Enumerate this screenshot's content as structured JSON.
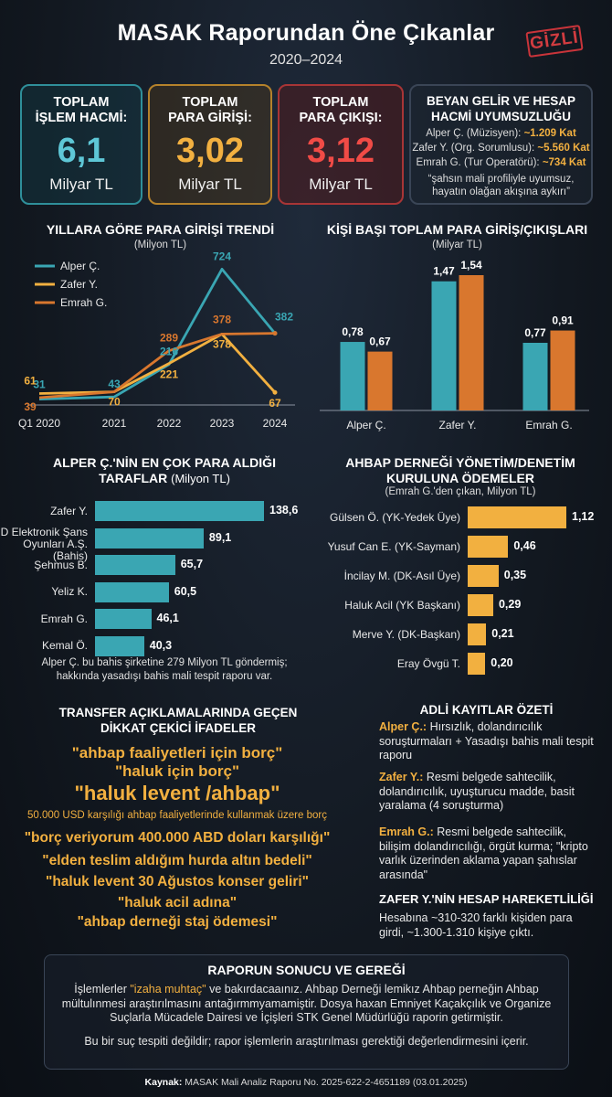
{
  "header": {
    "title": "MASAK Raporundan Öne Çıkanlar",
    "subtitle": "2020–2024",
    "stamp": "GİZLİ"
  },
  "stats": {
    "total_volume": {
      "label_1": "TOPLAM",
      "label_2": "İŞLEM HACMİ:",
      "value": "6,1",
      "unit": "Milyar TL"
    },
    "total_in": {
      "label_1": "TOPLAM",
      "label_2": "PARA GİRİŞİ:",
      "value": "3,02",
      "unit": "Milyar TL"
    },
    "total_out": {
      "label_1": "TOPLAM",
      "label_2": "PARA ÇIKIŞI:",
      "value": "3,12",
      "unit": "Milyar TL"
    },
    "mismatch": {
      "title_1": "BEYAN GELİR VE HESAP",
      "title_2": "HACMİ UYUMSUZLUĞU",
      "rows": [
        {
          "name": "Alper Ç. (Müzisyen):",
          "value": "~1.209 Kat"
        },
        {
          "name": "Zafer Y. (Org. Sorumlusu):",
          "value": "~5.560 Kat"
        },
        {
          "name": "Emrah G. (Tur Operatörü):",
          "value": "~734 Kat"
        }
      ],
      "quote_1": "“şahsın mali profiliyle uyumsuz,",
      "quote_2": "hayatın olağan akışına aykırı”"
    }
  },
  "colors": {
    "teal": "#3aa6b3",
    "gold": "#f2b040",
    "orange": "#d9772e",
    "red": "#f04b46"
  },
  "chart_data": [
    {
      "type": "line",
      "title": "YILLARA GÖRE PARA GİRİŞİ TRENDİ",
      "subtitle": "(Milyon TL)",
      "x": [
        "Q1 2020",
        "2021",
        "2022",
        "2023",
        "2024"
      ],
      "series": [
        {
          "name": "Alper Ç.",
          "values": [
            31,
            43,
            216,
            724,
            382
          ]
        },
        {
          "name": "Zafer Y.",
          "values": [
            61,
            70,
            221,
            378,
            67
          ]
        },
        {
          "name": "Emrah G.",
          "values": [
            39,
            70,
            289,
            378,
            382
          ]
        }
      ],
      "legend": "top-left"
    },
    {
      "type": "bar",
      "title": "KİŞİ BAŞI TOPLAM PARA GİRİŞ/ÇIKIŞLARI",
      "subtitle": "(Milyar TL)",
      "categories": [
        "Alper Ç.",
        "Zafer Y.",
        "Emrah G."
      ],
      "series": [
        {
          "values": [
            0.78,
            1.47,
            0.77
          ],
          "labels": [
            "0,78",
            "1,47",
            "0,77"
          ]
        },
        {
          "values": [
            0.67,
            1.54,
            0.91
          ],
          "labels": [
            "0,67",
            "1,54",
            "0,91"
          ]
        }
      ]
    },
    {
      "type": "bar",
      "orientation": "horizontal",
      "title_1": "ALPER Ç.'NİN EN ÇOK PARA ALDIĞI",
      "title_2": "TARAFLAR",
      "title_unit": "(Milyon TL)",
      "categories": [
        "Zafer Y.",
        "D Elektronik Şans Oyunları A.Ş. (Bahis)",
        "Şehmus B.",
        "Yeliz K.",
        "Emrah G.",
        "Kemal Ö."
      ],
      "category_lines": [
        [
          "Zafer Y."
        ],
        [
          "D Elektronik Şans",
          "Oyunları A.Ş. (Bahis)"
        ],
        [
          "Şehmus B."
        ],
        [
          "Yeliz K."
        ],
        [
          "Emrah G."
        ],
        [
          "Kemal Ö."
        ]
      ],
      "values": [
        138.6,
        89.1,
        65.7,
        60.5,
        46.1,
        40.3
      ],
      "labels": [
        "138,6",
        "89,1",
        "65,7",
        "60,5",
        "46,1",
        "40,3"
      ],
      "note_1": "Alper Ç. bu bahis şirketine 279 Milyon TL göndermiş;",
      "note_2": "hakkında yasadışı bahis mali tespit raporu var."
    },
    {
      "type": "bar",
      "orientation": "horizontal",
      "title_1": "AHBAP DERNEĞİ YÖNETİM/DENETİM",
      "title_2": "KURULUNA ÖDEMELER",
      "subtitle": "(Emrah G.'den çıkan, Milyon TL)",
      "categories": [
        "Gülsen Ö. (YK-Yedek Üye)",
        "Yusuf Can E. (YK-Sayman)",
        "İncilay M. (DK-Asıl Üye)",
        "Haluk Acil (YK Başkanı)",
        "Merve Y. (DK-Başkan)",
        "Eray Övgü T."
      ],
      "values": [
        1.12,
        0.46,
        0.35,
        0.29,
        0.21,
        0.2
      ],
      "labels": [
        "1,12",
        "0,46",
        "0,35",
        "0,29",
        "0,21",
        "0,20"
      ]
    }
  ],
  "transfer": {
    "title_1": "TRANSFER AÇIKLAMALARINDA GEÇEN",
    "title_2": "DİKKAT ÇEKİCİ İFADELER",
    "lines": [
      "\"ahbap faaliyetleri için borç\"",
      "\"haluk için borç\"",
      "\"haluk levent /ahbap\"",
      "50.000 USD karşılığı ahbap faaliyetlerinde kullanmak üzere borç",
      "\"borç veriyorum 400.000 ABD doları karşılığı\"",
      "\"elden teslim aldığım hurda altın bedeli\"",
      "\"haluk levent 30 Ağustos konser geliri\"",
      "\"haluk acil adına\"",
      "\"ahbap derneği staj ödemesi\""
    ]
  },
  "adli": {
    "title": "ADLİ KAYITLAR ÖZETİ",
    "alper_name": "Alper Ç.:",
    "alper_text": "Hırsızlık, dolandırıcılık soruşturmaları + Yasadışı bahis mali tespit raporu",
    "zafer_name": "Zafer Y.:",
    "zafer_text": "Resmi belgede sahtecilik, dolandırıcılık, uyuşturucu madde, basit yaralama (4 soruşturma)",
    "emrah_name": "Emrah G.:",
    "emrah_text": "Resmi belgede sahtecilik, bilişim dolandırıcılığı, örgüt kurma; \"kripto varlık üzerinden aklama yapan şahıslar arasında\"",
    "hesap_title": "ZAFER Y.'NİN HESAP HAREKETLİLİĞİ",
    "hesap_text": "Hesabına ~310-320 farklı kişiden para girdi, ~1.300-1.310 kişiye çıktı."
  },
  "result": {
    "title": "RAPORUN SONUCU VE GEREĞİ",
    "p1_a": "İşlemlerler ",
    "p1_hl": "\"izaha muhtaç\"",
    "p1_b": " ve bakırdacaaınız. Ahbap Derneği lemikız Ahbap perneğin Ahbap mültulınmesi araştırılmasını antağırmmyamamiştir. Dosya haxan Emniyet Kaçakçılık ve Organize Suçlarla Mücadele Dairesi ve İçişleri STK Genel Müdürlüğü raporin getirmiştir.",
    "p2": "Bu bir suç tespiti değildir; rapor işlemlerin araştırılması gerektiği değerlendirmesini içerir."
  },
  "source": {
    "label": "Kaynak:",
    "text": " MASAK Mali Analiz Raporu No. 2025-622-2-4651189 (03.01.2025)"
  }
}
